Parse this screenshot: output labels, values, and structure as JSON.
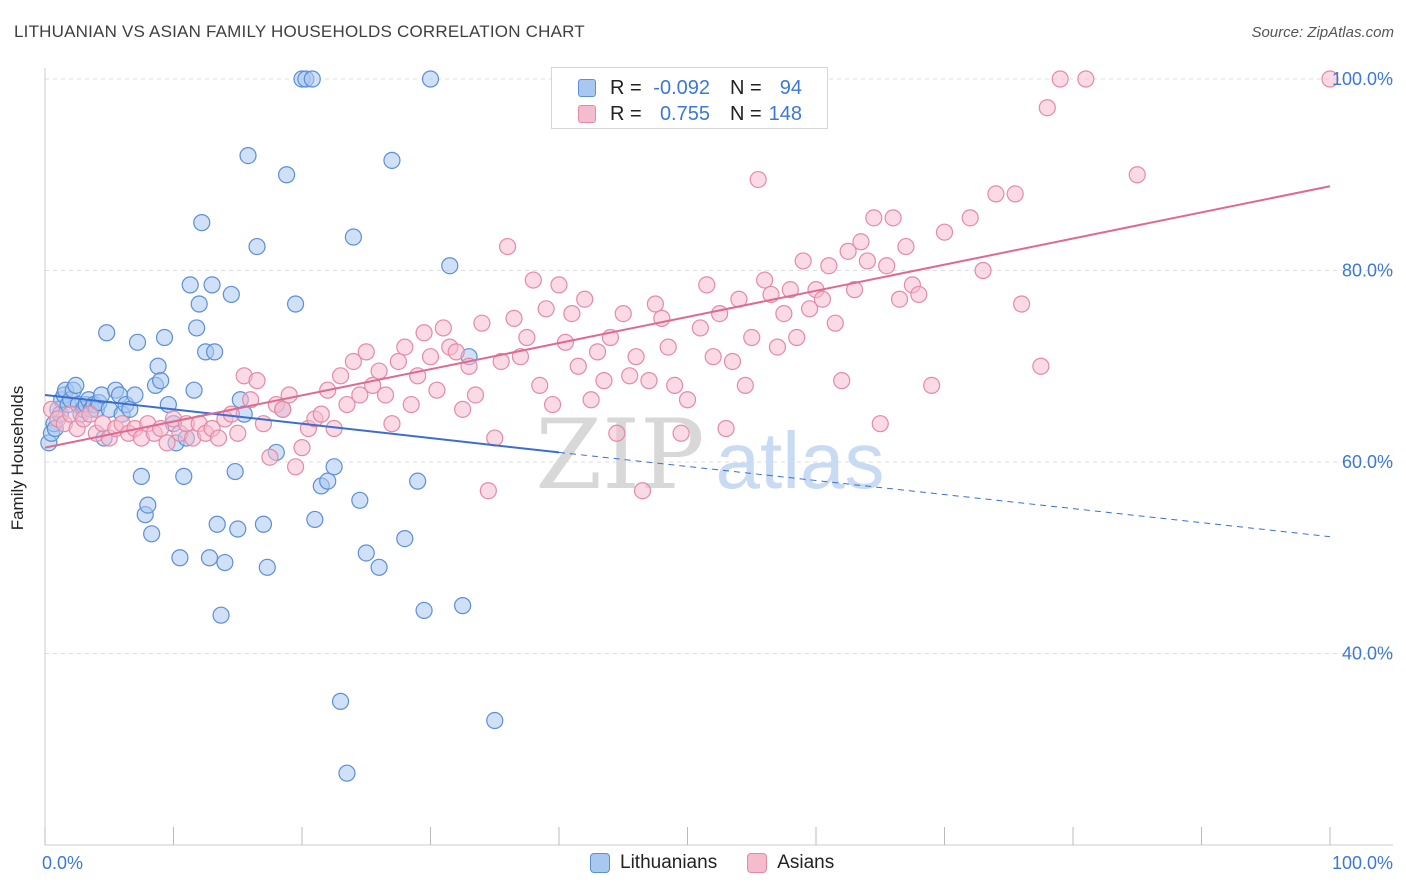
{
  "header": {
    "title": "LITHUANIAN VS ASIAN FAMILY HOUSEHOLDS CORRELATION CHART",
    "source": "Source: ZipAtlas.com"
  },
  "watermark": {
    "zip": "ZIP",
    "atlas": "atlas"
  },
  "legend": {
    "rows": [
      {
        "r_label": "R =",
        "r_value": "-0.092",
        "n_label": "N =",
        "n_value": "94"
      },
      {
        "r_label": "R =",
        "r_value": "0.755",
        "n_label": "N =",
        "n_value": "148"
      }
    ],
    "bottom": [
      "Lithuanians",
      "Asians"
    ]
  },
  "colors": {
    "blue_fill": "#a9c8f0",
    "blue_stroke": "#5b8fd6",
    "blue_line": "#3a6fd0",
    "pink_fill": "#f5bccd",
    "pink_stroke": "#e58aa6",
    "pink_line": "#e0698f",
    "axis_label": "#3b78d8",
    "grid": "#dddddd"
  },
  "chart_data": {
    "type": "scatter",
    "title": "LITHUANIAN VS ASIAN FAMILY HOUSEHOLDS CORRELATION CHART",
    "xlabel": "",
    "ylabel": "Family Households",
    "xlim": [
      0,
      100
    ],
    "ylim": [
      20,
      102
    ],
    "x_tick_labels": [
      "0.0%",
      "100.0%"
    ],
    "y_ticks": [
      40,
      60,
      80,
      100
    ],
    "y_tick_labels": [
      "40.0%",
      "60.0%",
      "80.0%",
      "100.0%"
    ],
    "grid": true,
    "legend_position": "top-center",
    "series": [
      {
        "name": "Lithuanians",
        "r": -0.092,
        "n": 94,
        "trend": {
          "x0": 0,
          "y0": 67.0,
          "x1": 40,
          "y1": 61.0,
          "dashed_to_x": 100,
          "dashed_to_y": 52.2
        },
        "points": [
          [
            0.3,
            62
          ],
          [
            0.5,
            63
          ],
          [
            0.7,
            64
          ],
          [
            0.8,
            63.5
          ],
          [
            1.0,
            65.5
          ],
          [
            1.2,
            65
          ],
          [
            1.3,
            66.5
          ],
          [
            1.5,
            67
          ],
          [
            1.6,
            67.5
          ],
          [
            1.8,
            66
          ],
          [
            2.0,
            66.5
          ],
          [
            2.2,
            67.5
          ],
          [
            2.4,
            68
          ],
          [
            2.6,
            66
          ],
          [
            2.8,
            65
          ],
          [
            3.0,
            65.5
          ],
          [
            3.2,
            66
          ],
          [
            3.4,
            66.5
          ],
          [
            3.6,
            65.5
          ],
          [
            3.8,
            66
          ],
          [
            4.0,
            65.5
          ],
          [
            4.2,
            66.2
          ],
          [
            4.4,
            67
          ],
          [
            4.6,
            62.5
          ],
          [
            4.8,
            73.5
          ],
          [
            5.0,
            65.5
          ],
          [
            5.5,
            67.5
          ],
          [
            5.8,
            67
          ],
          [
            6.0,
            65
          ],
          [
            6.3,
            66
          ],
          [
            6.6,
            65.5
          ],
          [
            7.0,
            67
          ],
          [
            7.2,
            72.5
          ],
          [
            7.5,
            58.5
          ],
          [
            7.8,
            54.5
          ],
          [
            8.0,
            55.5
          ],
          [
            8.3,
            52.5
          ],
          [
            8.6,
            68
          ],
          [
            8.8,
            70
          ],
          [
            9.0,
            68.5
          ],
          [
            9.3,
            73
          ],
          [
            9.6,
            66
          ],
          [
            10.0,
            64
          ],
          [
            10.2,
            62
          ],
          [
            10.5,
            50
          ],
          [
            10.8,
            58.5
          ],
          [
            11.0,
            62.5
          ],
          [
            11.3,
            78.5
          ],
          [
            11.6,
            67.5
          ],
          [
            11.8,
            74
          ],
          [
            12.0,
            76.5
          ],
          [
            12.2,
            85
          ],
          [
            12.5,
            71.5
          ],
          [
            12.8,
            50
          ],
          [
            13.0,
            78.5
          ],
          [
            13.2,
            71.5
          ],
          [
            13.4,
            53.5
          ],
          [
            13.7,
            44
          ],
          [
            14.0,
            49.5
          ],
          [
            14.5,
            77.5
          ],
          [
            14.8,
            59
          ],
          [
            15.0,
            53
          ],
          [
            15.2,
            66.5
          ],
          [
            15.5,
            65
          ],
          [
            15.8,
            92
          ],
          [
            16.5,
            82.5
          ],
          [
            17.0,
            53.5
          ],
          [
            17.3,
            49
          ],
          [
            18.0,
            61
          ],
          [
            18.5,
            65.5
          ],
          [
            18.8,
            90
          ],
          [
            19.5,
            76.5
          ],
          [
            20.0,
            100
          ],
          [
            20.3,
            100
          ],
          [
            20.8,
            100
          ],
          [
            21.0,
            54
          ],
          [
            21.5,
            57.5
          ],
          [
            22.0,
            58
          ],
          [
            22.5,
            59.5
          ],
          [
            23.0,
            35
          ],
          [
            23.5,
            27.5
          ],
          [
            24.0,
            83.5
          ],
          [
            24.5,
            56
          ],
          [
            25.0,
            50.5
          ],
          [
            26.0,
            49
          ],
          [
            27.0,
            91.5
          ],
          [
            28.0,
            52
          ],
          [
            29.0,
            58
          ],
          [
            29.5,
            44.5
          ],
          [
            30.0,
            100
          ],
          [
            31.5,
            80.5
          ],
          [
            32.5,
            45
          ],
          [
            33.0,
            71
          ],
          [
            35.0,
            33
          ]
        ]
      },
      {
        "name": "Asians",
        "r": 0.755,
        "n": 148,
        "trend": {
          "x0": 0,
          "y0": 61.5,
          "x1": 100,
          "y1": 88.8
        },
        "points": [
          [
            0.5,
            65.5
          ],
          [
            1.0,
            64.5
          ],
          [
            1.5,
            64
          ],
          [
            2.0,
            65
          ],
          [
            2.5,
            63.5
          ],
          [
            3.0,
            64.5
          ],
          [
            3.5,
            65
          ],
          [
            4.0,
            63
          ],
          [
            4.5,
            64
          ],
          [
            5.0,
            62.5
          ],
          [
            5.5,
            63.5
          ],
          [
            6.0,
            64
          ],
          [
            6.5,
            63
          ],
          [
            7.0,
            63.5
          ],
          [
            7.5,
            62.5
          ],
          [
            8.0,
            64
          ],
          [
            8.5,
            63
          ],
          [
            9.0,
            63.5
          ],
          [
            9.5,
            62
          ],
          [
            10.0,
            64.5
          ],
          [
            10.5,
            63
          ],
          [
            11.0,
            64
          ],
          [
            11.5,
            62.5
          ],
          [
            12.0,
            64
          ],
          [
            12.5,
            63
          ],
          [
            13.0,
            63.5
          ],
          [
            13.5,
            62.5
          ],
          [
            14.0,
            64.5
          ],
          [
            14.5,
            65
          ],
          [
            15.0,
            63
          ],
          [
            15.5,
            69
          ],
          [
            16.0,
            66.5
          ],
          [
            16.5,
            68.5
          ],
          [
            17.0,
            64
          ],
          [
            17.5,
            60.5
          ],
          [
            18.0,
            66
          ],
          [
            18.5,
            65.5
          ],
          [
            19.0,
            67
          ],
          [
            19.5,
            59.5
          ],
          [
            20.0,
            61.5
          ],
          [
            20.5,
            63.5
          ],
          [
            21.0,
            64.5
          ],
          [
            21.5,
            65
          ],
          [
            22.0,
            67.5
          ],
          [
            22.5,
            63.5
          ],
          [
            23.0,
            69
          ],
          [
            23.5,
            66
          ],
          [
            24.0,
            70.5
          ],
          [
            24.5,
            67
          ],
          [
            25.0,
            71.5
          ],
          [
            25.5,
            68
          ],
          [
            26.0,
            69.5
          ],
          [
            26.5,
            67
          ],
          [
            27.0,
            64
          ],
          [
            27.5,
            70.5
          ],
          [
            28.0,
            72
          ],
          [
            28.5,
            66
          ],
          [
            29.0,
            69
          ],
          [
            29.5,
            73.5
          ],
          [
            30.0,
            71
          ],
          [
            30.5,
            67.5
          ],
          [
            31.0,
            74
          ],
          [
            31.5,
            72
          ],
          [
            32.0,
            71.5
          ],
          [
            32.5,
            65.5
          ],
          [
            33.0,
            70
          ],
          [
            33.5,
            67
          ],
          [
            34.0,
            74.5
          ],
          [
            34.5,
            57
          ],
          [
            35.0,
            62.5
          ],
          [
            35.5,
            70.5
          ],
          [
            36.0,
            82.5
          ],
          [
            36.5,
            75
          ],
          [
            37.0,
            71
          ],
          [
            37.5,
            73
          ],
          [
            38.0,
            79
          ],
          [
            38.5,
            68
          ],
          [
            39.0,
            76
          ],
          [
            39.5,
            66
          ],
          [
            40.0,
            78.5
          ],
          [
            40.5,
            72.5
          ],
          [
            41.0,
            75.5
          ],
          [
            41.5,
            70
          ],
          [
            42.0,
            77
          ],
          [
            42.5,
            66.5
          ],
          [
            43.0,
            71.5
          ],
          [
            43.5,
            68.5
          ],
          [
            44.0,
            73
          ],
          [
            44.5,
            63
          ],
          [
            45.0,
            75.5
          ],
          [
            45.5,
            69
          ],
          [
            46.0,
            71
          ],
          [
            46.5,
            57
          ],
          [
            47.0,
            68.5
          ],
          [
            47.5,
            76.5
          ],
          [
            48.0,
            75
          ],
          [
            48.5,
            72
          ],
          [
            49.0,
            68
          ],
          [
            49.5,
            63
          ],
          [
            50.0,
            66.5
          ],
          [
            51.0,
            74
          ],
          [
            51.5,
            78.5
          ],
          [
            52.0,
            71
          ],
          [
            52.5,
            75.5
          ],
          [
            53.0,
            63.5
          ],
          [
            53.5,
            70.5
          ],
          [
            54.0,
            77
          ],
          [
            54.5,
            68
          ],
          [
            55.0,
            73
          ],
          [
            55.5,
            89.5
          ],
          [
            56.0,
            79
          ],
          [
            57.0,
            72
          ],
          [
            57.5,
            75.5
          ],
          [
            58.0,
            78
          ],
          [
            58.5,
            73
          ],
          [
            59.0,
            81
          ],
          [
            59.5,
            76
          ],
          [
            60.0,
            78
          ],
          [
            61.0,
            80.5
          ],
          [
            61.5,
            74.5
          ],
          [
            62.0,
            68.5
          ],
          [
            62.5,
            82
          ],
          [
            63.0,
            78
          ],
          [
            63.5,
            83
          ],
          [
            64.0,
            81
          ],
          [
            65.0,
            64
          ],
          [
            65.5,
            80.5
          ],
          [
            66.0,
            85.5
          ],
          [
            67.0,
            82.5
          ],
          [
            67.5,
            78.5
          ],
          [
            68.0,
            77.5
          ],
          [
            69.0,
            68
          ],
          [
            72.0,
            85.5
          ],
          [
            74.0,
            88
          ],
          [
            76.0,
            76.5
          ],
          [
            78.0,
            97
          ],
          [
            79.0,
            100
          ],
          [
            81.0,
            100
          ],
          [
            85.0,
            90
          ],
          [
            100.0,
            100
          ],
          [
            56.5,
            77.5
          ],
          [
            60.5,
            77
          ],
          [
            64.5,
            85.5
          ],
          [
            66.5,
            77
          ],
          [
            70.0,
            84
          ],
          [
            73.0,
            80
          ],
          [
            75.5,
            88
          ],
          [
            77.5,
            70
          ]
        ]
      }
    ]
  }
}
